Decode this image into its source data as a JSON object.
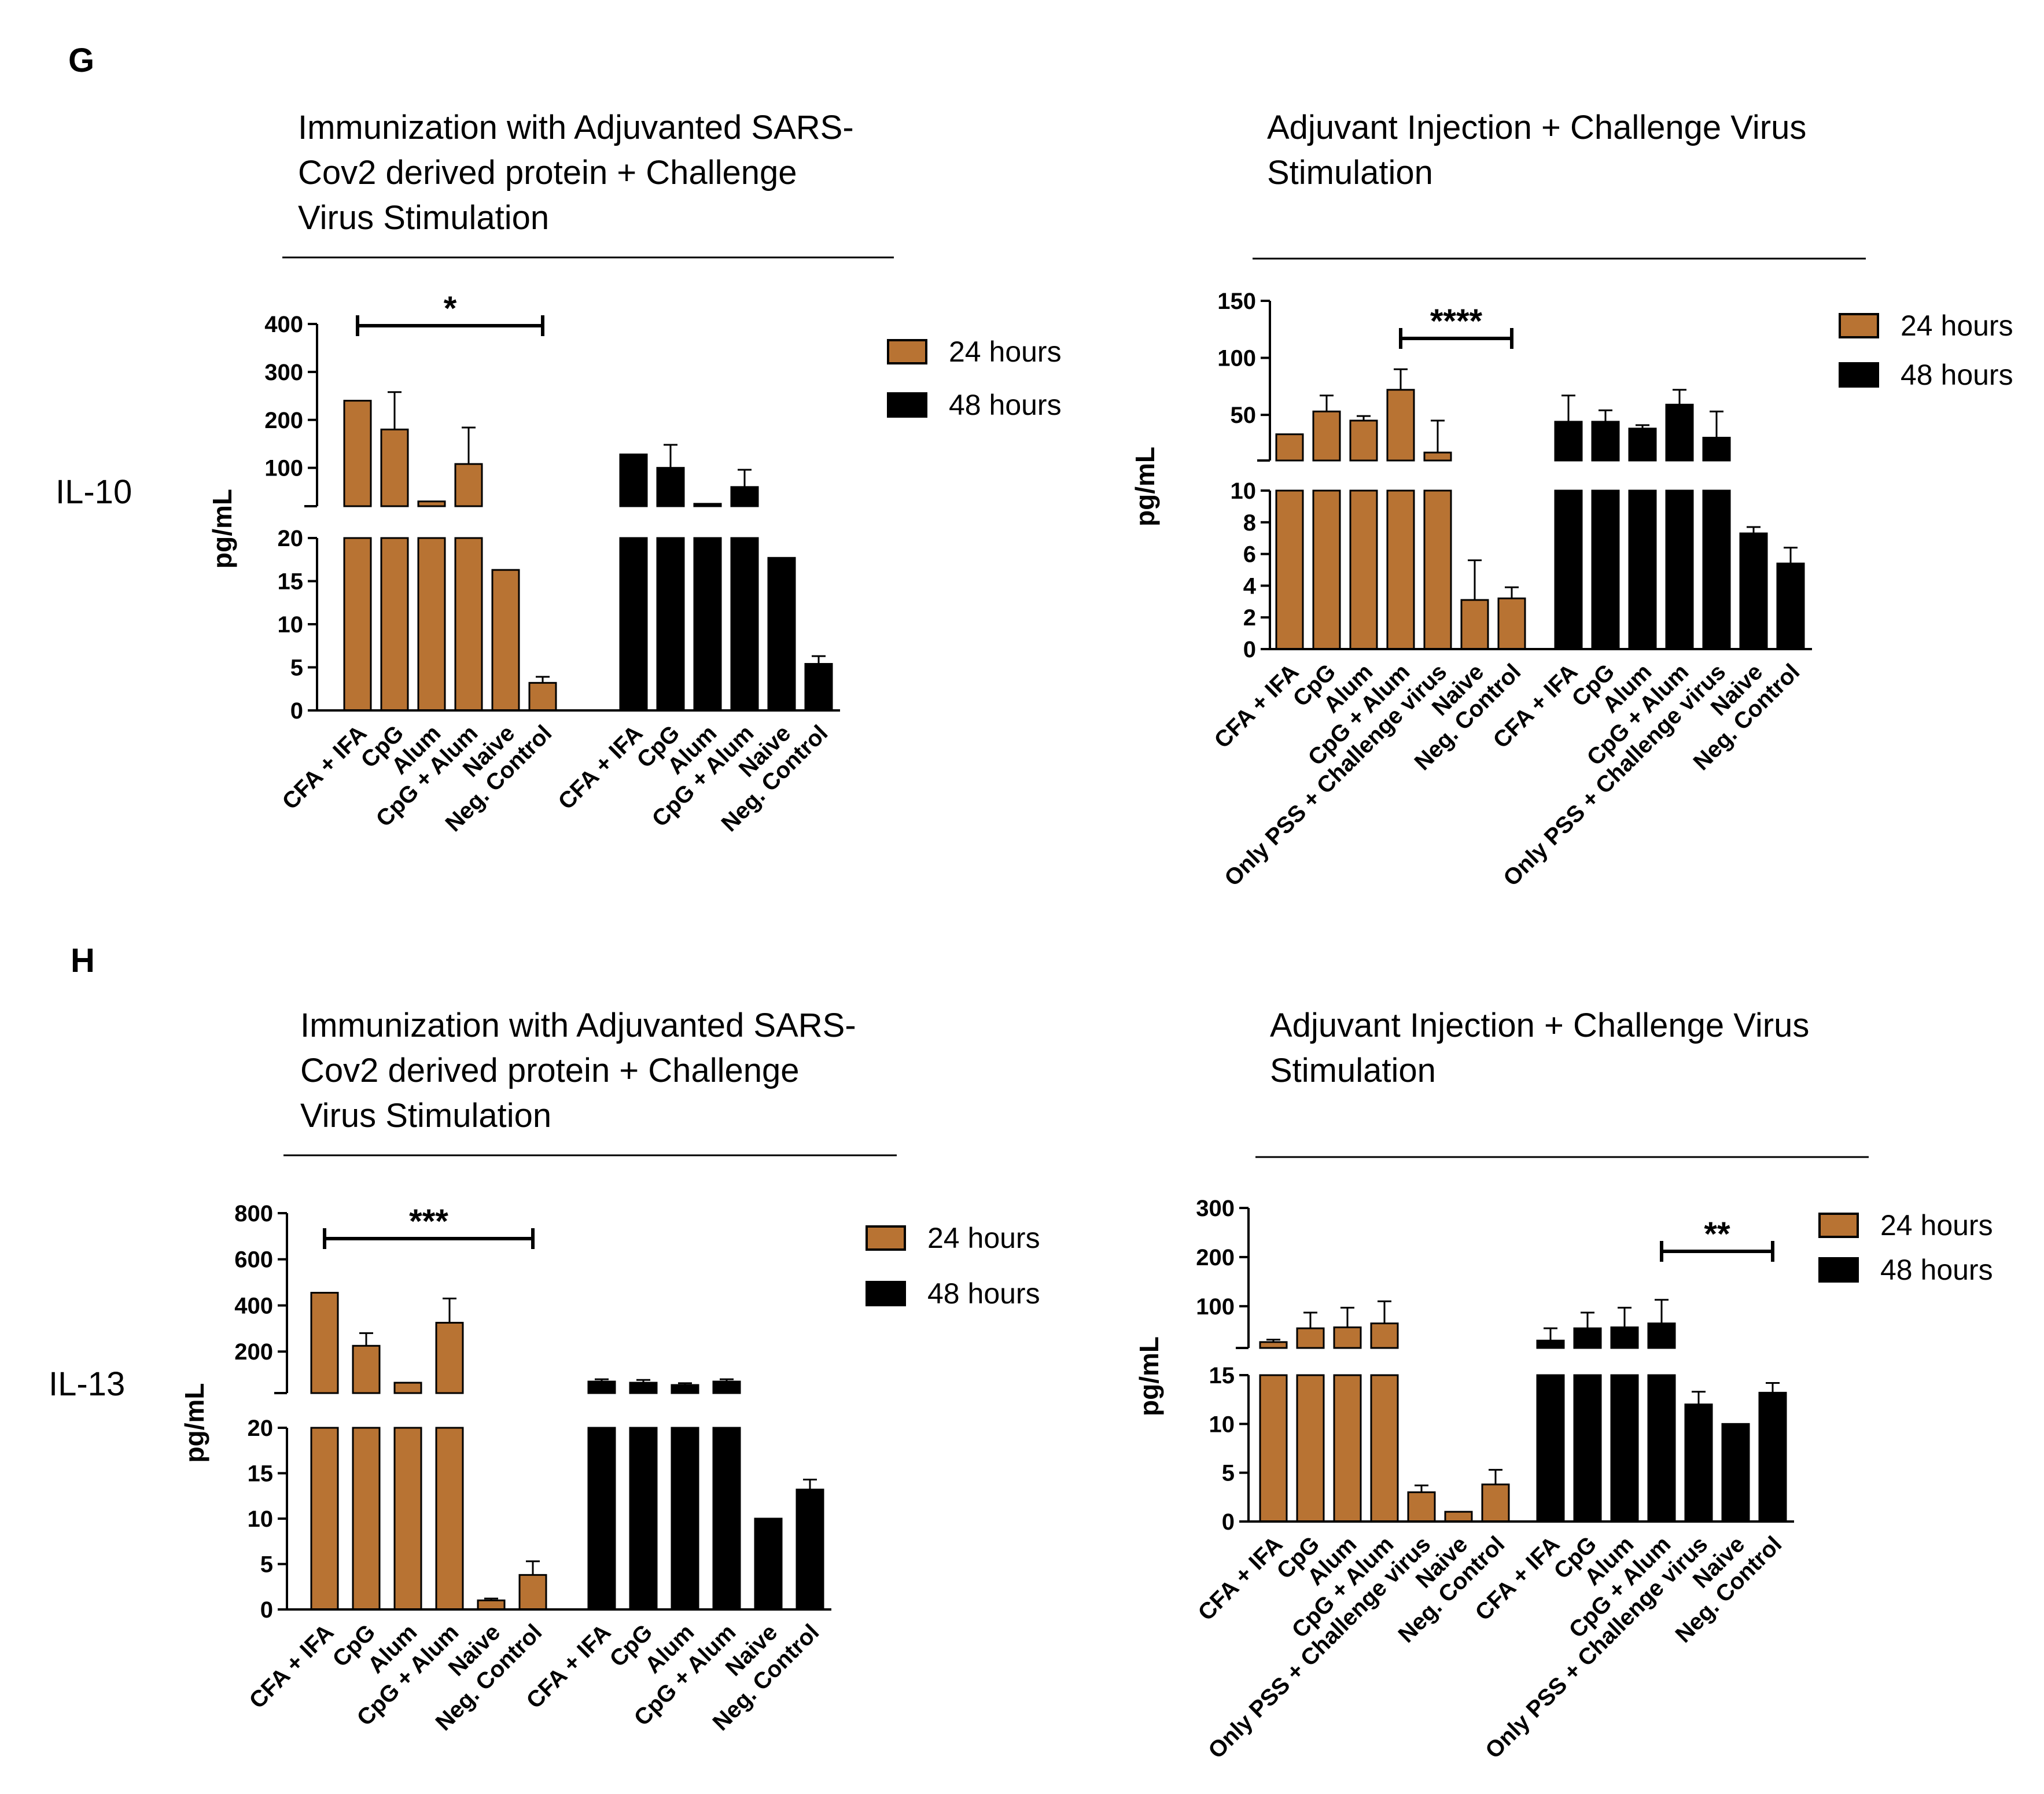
{
  "panels": {
    "G": {
      "letter": "G",
      "row_label": "IL-10"
    },
    "H": {
      "letter": "H",
      "row_label": "IL-13"
    }
  },
  "legend": {
    "labels": [
      "24 hours",
      "48 hours"
    ]
  },
  "colors": {
    "h24": "#b87333",
    "h48": "#000000",
    "axis": "#000000",
    "bg": "#ffffff"
  },
  "chart_data": [
    {
      "id": "G-left",
      "type": "bar",
      "title_lines": [
        "Immunization with Adjuvanted SARS-",
        "Cov2 derived protein + Challenge",
        "Virus Stimulation"
      ],
      "ylabel": "pg/mL",
      "categories": [
        "CFA + IFA",
        "CpG",
        "Alum",
        "CpG + Alum",
        "Naive",
        "Neg. Control"
      ],
      "broken_axis": {
        "lower_range": [
          0,
          20
        ],
        "upper_range": [
          20,
          400
        ],
        "lower_ticks": [
          0,
          5,
          10,
          15,
          20
        ],
        "upper_ticks": [
          100,
          200,
          300,
          400
        ]
      },
      "series": [
        {
          "name": "24 hours",
          "values": [
            240,
            180,
            30,
            108,
            16.3,
            3.2
          ],
          "errors": [
            null,
            78,
            null,
            76,
            null,
            0.7
          ]
        },
        {
          "name": "48 hours",
          "values": [
            128,
            100,
            25,
            60,
            17.7,
            5.4
          ],
          "errors": [
            null,
            48,
            null,
            36,
            null,
            0.9
          ]
        }
      ],
      "significance": {
        "label": "*",
        "from_category": 0,
        "to_category": 5,
        "series": "24 hours"
      }
    },
    {
      "id": "G-right",
      "type": "bar",
      "title_lines": [
        "Adjuvant Injection + Challenge Virus",
        "Stimulation"
      ],
      "ylabel": "pg/mL",
      "categories": [
        "CFA + IFA",
        "CpG",
        "Alum",
        "CpG + Alum",
        "Only PSS + Challenge virus",
        "Naive",
        "Neg. Control"
      ],
      "broken_axis": {
        "lower_range": [
          0,
          10
        ],
        "upper_range": [
          10,
          150
        ],
        "lower_ticks": [
          0,
          2,
          4,
          6,
          8,
          10
        ],
        "upper_ticks": [
          50,
          100,
          150
        ]
      },
      "series": [
        {
          "name": "24 hours",
          "values": [
            33,
            53,
            45,
            72,
            17,
            3.1,
            3.2
          ],
          "errors": [
            null,
            14,
            4,
            18,
            28,
            2.5,
            0.7
          ]
        },
        {
          "name": "48 hours",
          "values": [
            44,
            44,
            38,
            59,
            30,
            7.3,
            5.4
          ],
          "errors": [
            23,
            10,
            3,
            13,
            23,
            0.4,
            1.0
          ]
        }
      ],
      "significance": {
        "label": "****",
        "from_category": 3,
        "to_category": 6,
        "series": "24 hours"
      }
    },
    {
      "id": "H-left",
      "type": "bar",
      "title_lines": [
        "Immunization with Adjuvanted SARS-",
        "Cov2 derived protein + Challenge",
        "Virus Stimulation"
      ],
      "ylabel": "pg/mL",
      "categories": [
        "CFA + IFA",
        "CpG",
        "Alum",
        "CpG + Alum",
        "Naive",
        "Neg. Control"
      ],
      "broken_axis": {
        "lower_range": [
          0,
          20
        ],
        "upper_range": [
          20,
          800
        ],
        "lower_ticks": [
          0,
          5,
          10,
          15,
          20
        ],
        "upper_ticks": [
          200,
          400,
          600,
          800
        ]
      },
      "series": [
        {
          "name": "24 hours",
          "values": [
            455,
            225,
            65,
            325,
            1.0,
            3.8
          ],
          "errors": [
            null,
            55,
            null,
            105,
            0.2,
            1.5
          ]
        },
        {
          "name": "48 hours",
          "values": [
            70,
            65,
            55,
            70,
            10.0,
            13.2
          ],
          "errors": [
            10,
            12,
            8,
            10,
            null,
            1.1
          ]
        }
      ],
      "significance": {
        "label": "***",
        "from_category": 0,
        "to_category": 5,
        "series": "24 hours"
      }
    },
    {
      "id": "H-right",
      "type": "bar",
      "title_lines": [
        "Adjuvant Injection + Challenge Virus",
        "Stimulation"
      ],
      "ylabel": "pg/mL",
      "categories": [
        "CFA + IFA",
        "CpG",
        "Alum",
        "CpG + Alum",
        "Only PSS + Challenge virus",
        "Naive",
        "Neg. Control"
      ],
      "broken_axis": {
        "lower_range": [
          0,
          15
        ],
        "upper_range": [
          15,
          300
        ],
        "lower_ticks": [
          0,
          5,
          10,
          15
        ],
        "upper_ticks": [
          100,
          200,
          300
        ]
      },
      "series": [
        {
          "name": "24 hours",
          "values": [
            27,
            55,
            57,
            65,
            3.0,
            1.0,
            3.8
          ],
          "errors": [
            5,
            32,
            40,
            45,
            0.7,
            null,
            1.5
          ]
        },
        {
          "name": "48 hours",
          "values": [
            30,
            55,
            57,
            65,
            12.0,
            10.0,
            13.2
          ],
          "errors": [
            25,
            32,
            40,
            48,
            1.3,
            null,
            1.0
          ]
        }
      ],
      "significance": {
        "label": "**",
        "from_category": 3,
        "to_category": 6,
        "series": "48 hours"
      }
    }
  ]
}
